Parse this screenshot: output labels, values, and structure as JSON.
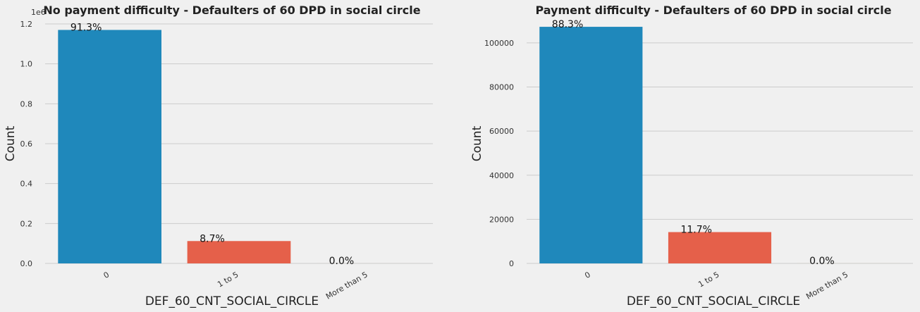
{
  "chart_data": [
    {
      "type": "bar",
      "title": "No payment difficulty - Defaulters of 60 DPD in social circle",
      "xlabel": "DEF_60_CNT_SOCIAL_CIRCLE",
      "ylabel": "Count",
      "categories": [
        "0",
        "1 to 5",
        "More than 5"
      ],
      "values": [
        1170000,
        112000,
        50
      ],
      "bar_labels": [
        "91.3%",
        "8.7%",
        "0.0%"
      ],
      "colors": [
        "#1f88bb",
        "#e5604a",
        "#f5b61e"
      ],
      "ylim": [
        0,
        1200000
      ],
      "yticks": [
        0,
        200000,
        400000,
        600000,
        800000,
        1000000,
        1200000
      ],
      "ytick_labels": [
        "0.0",
        "0.2",
        "0.4",
        "0.6",
        "0.8",
        "1.0",
        "1.2"
      ],
      "y_offset_label": "1e6",
      "grid": "y"
    },
    {
      "type": "bar",
      "title": "Payment difficulty - Defaulters of 60 DPD in social circle",
      "xlabel": "DEF_60_CNT_SOCIAL_CIRCLE",
      "ylabel": "Count",
      "categories": [
        "0",
        "1 to 5",
        "More than 5"
      ],
      "values": [
        107300,
        14200,
        5
      ],
      "bar_labels": [
        "88.3%",
        "11.7%",
        "0.0%"
      ],
      "colors": [
        "#1f88bb",
        "#e5604a",
        "#f5b61e"
      ],
      "ylim": [
        0,
        108600
      ],
      "yticks": [
        0,
        20000,
        40000,
        60000,
        80000,
        100000
      ],
      "ytick_labels": [
        "0",
        "20000",
        "40000",
        "60000",
        "80000",
        "100000"
      ],
      "y_offset_label": "",
      "grid": "y"
    }
  ]
}
